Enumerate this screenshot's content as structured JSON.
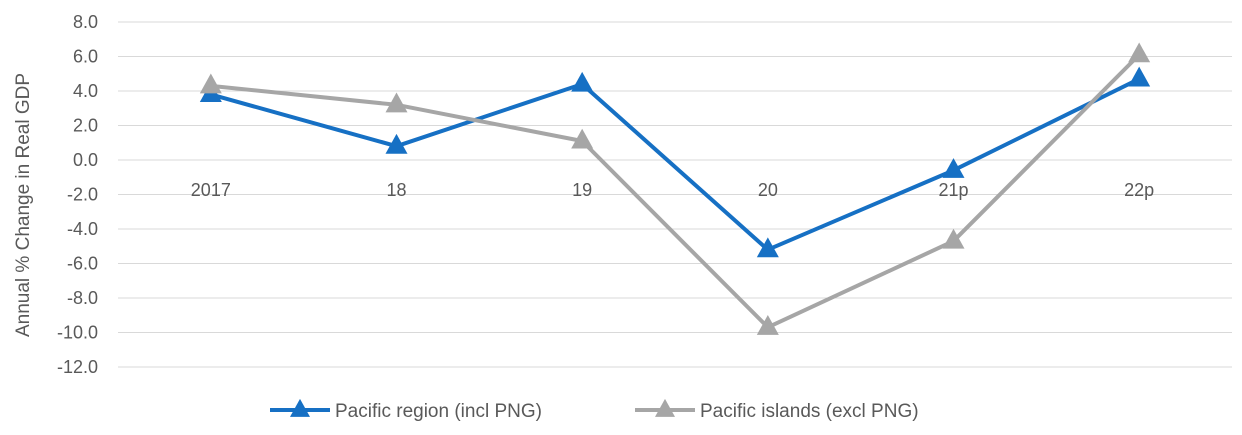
{
  "chart_data": {
    "type": "line",
    "title": "",
    "ylabel": "Annual % Change in Real GDP",
    "xlabel": "",
    "categories": [
      "2017",
      "18",
      "19",
      "20",
      "21p",
      "22p"
    ],
    "ylim": [
      -12.0,
      8.0
    ],
    "ytick_step": 2,
    "ytick_labels": [
      "8.0",
      "6.0",
      "4.0",
      "2.0",
      "0.0",
      "-2.0",
      "-4.0",
      "-6.0",
      "-8.0",
      "-10.0",
      "-12.0"
    ],
    "grid": "horizontal",
    "legend_position": "bottom",
    "marker": "triangle",
    "series": [
      {
        "name": "Pacific region (incl PNG)",
        "color": "#1670C4",
        "values": [
          3.8,
          0.8,
          4.4,
          -5.2,
          -0.6,
          4.7
        ]
      },
      {
        "name": "Pacific islands (excl PNG)",
        "color": "#A6A6A6",
        "values": [
          4.3,
          3.2,
          1.1,
          -9.7,
          -4.7,
          6.1
        ]
      }
    ]
  }
}
